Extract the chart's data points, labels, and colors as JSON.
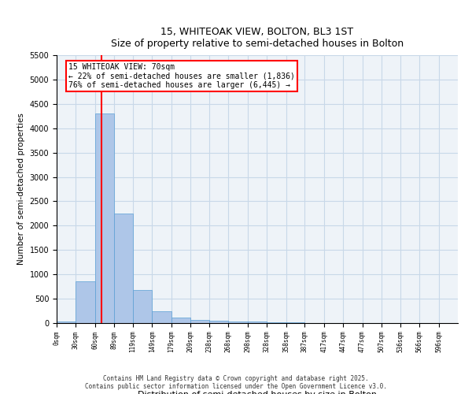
{
  "title": "15, WHITEOAK VIEW, BOLTON, BL3 1ST",
  "subtitle": "Size of property relative to semi-detached houses in Bolton",
  "xlabel": "Distribution of semi-detached houses by size in Bolton",
  "ylabel": "Number of semi-detached properties",
  "bin_labels": [
    "0sqm",
    "30sqm",
    "60sqm",
    "89sqm",
    "119sqm",
    "149sqm",
    "179sqm",
    "209sqm",
    "238sqm",
    "268sqm",
    "298sqm",
    "328sqm",
    "358sqm",
    "387sqm",
    "417sqm",
    "447sqm",
    "477sqm",
    "507sqm",
    "536sqm",
    "566sqm",
    "596sqm"
  ],
  "bin_edges": [
    0,
    30,
    60,
    89,
    119,
    149,
    179,
    209,
    238,
    268,
    298,
    328,
    358,
    387,
    417,
    447,
    477,
    507,
    536,
    566,
    596
  ],
  "bar_heights": [
    30,
    850,
    4300,
    2250,
    680,
    250,
    120,
    70,
    55,
    40,
    30,
    20,
    12,
    8,
    5,
    4,
    3,
    2,
    2,
    1
  ],
  "bar_color": "#aec6e8",
  "bar_edge_color": "#5a9fd4",
  "grid_color": "#c8d8e8",
  "background_color": "#eef3f8",
  "red_line_x": 70,
  "property_sqm": 70,
  "pct_smaller": 22,
  "pct_larger": 76,
  "n_smaller": "1,836",
  "n_larger": "6,445",
  "annotation_text_line1": "15 WHITEOAK VIEW: 70sqm",
  "annotation_text_line2": "← 22% of semi-detached houses are smaller (1,836)",
  "annotation_text_line3": "76% of semi-detached houses are larger (6,445) →",
  "ylim": [
    0,
    5500
  ],
  "footer_line1": "Contains HM Land Registry data © Crown copyright and database right 2025.",
  "footer_line2": "Contains public sector information licensed under the Open Government Licence v3.0."
}
